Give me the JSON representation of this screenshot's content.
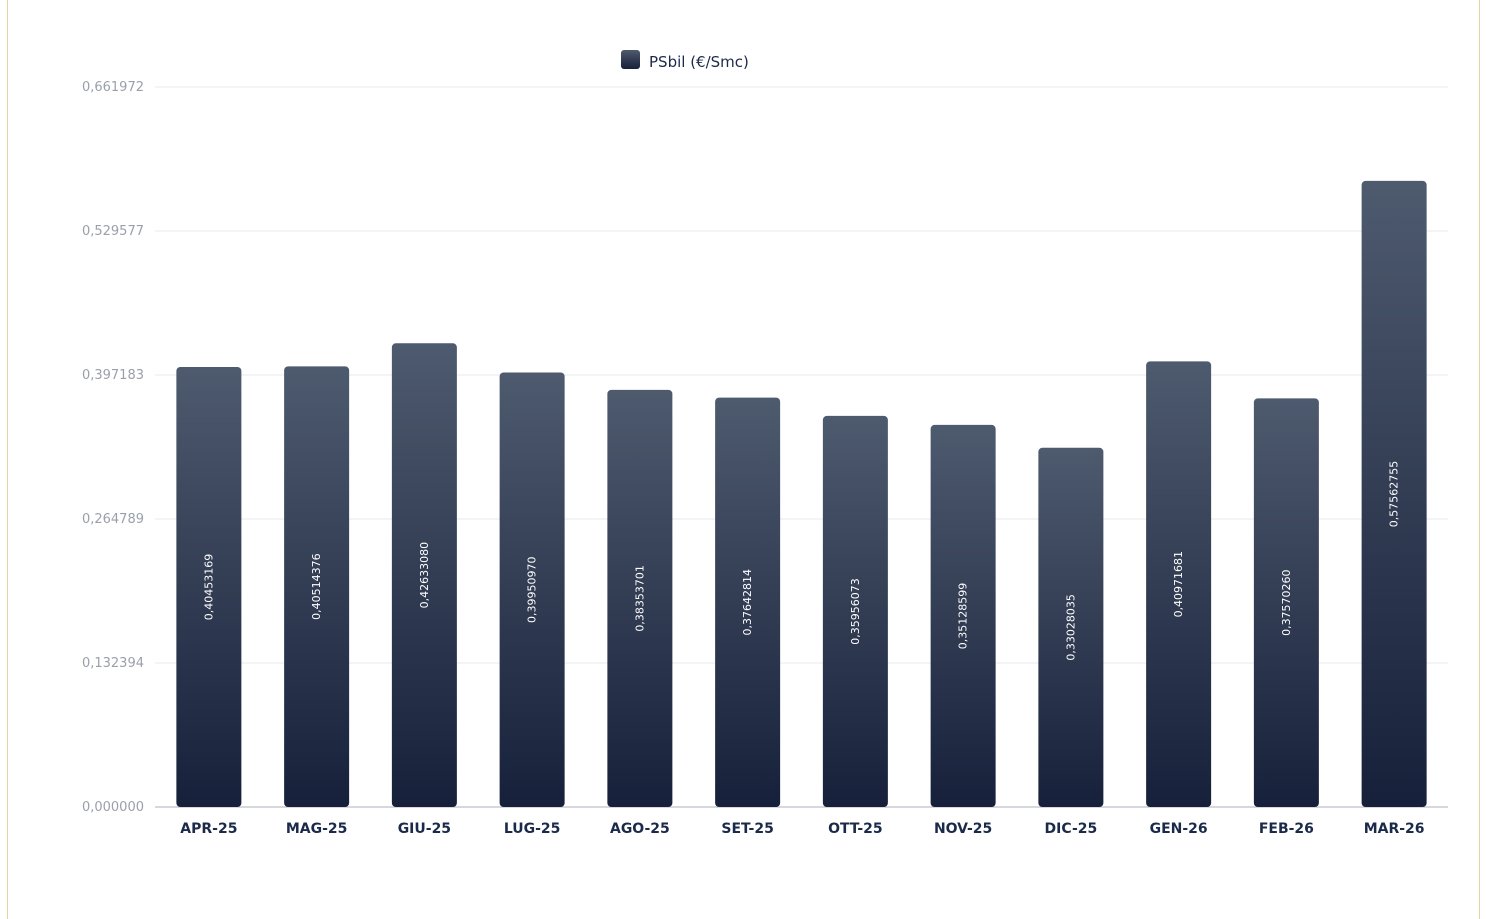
{
  "chart_data": {
    "type": "bar",
    "categories": [
      "APR-25",
      "MAG-25",
      "GIU-25",
      "LUG-25",
      "AGO-25",
      "SET-25",
      "OTT-25",
      "NOV-25",
      "DIC-25",
      "GEN-26",
      "FEB-26",
      "MAR-26"
    ],
    "series": [
      {
        "name": "PSbil (€/Smc)",
        "values": [
          0.40453169,
          0.40514376,
          0.4263308,
          0.3995097,
          0.38353701,
          0.37642814,
          0.35956073,
          0.35128599,
          0.33028035,
          0.40971681,
          0.3757026,
          0.57562755
        ],
        "value_labels": [
          "0,40453169",
          "0,40514376",
          "0,42633080",
          "0,39950970",
          "0,38353701",
          "0,37642814",
          "0,35956073",
          "0,35128599",
          "0,33028035",
          "0,40971681",
          "0,37570260",
          "0,57562755"
        ]
      }
    ],
    "ylim": [
      0,
      0.661972
    ],
    "yticks": [
      0,
      0.132394,
      0.264789,
      0.397183,
      0.529577,
      0.661972
    ],
    "ytick_labels": [
      "0,000000",
      "0,132394",
      "0,264789",
      "0,397183",
      "0,529577",
      "0,661972"
    ],
    "grid": true,
    "legend_position": "top-center",
    "colors": {
      "bar_top": "#4e5a6e",
      "bar_bottom": "#16203a",
      "grid": "#e6e8ec",
      "axis": "#c9ccd3"
    }
  }
}
